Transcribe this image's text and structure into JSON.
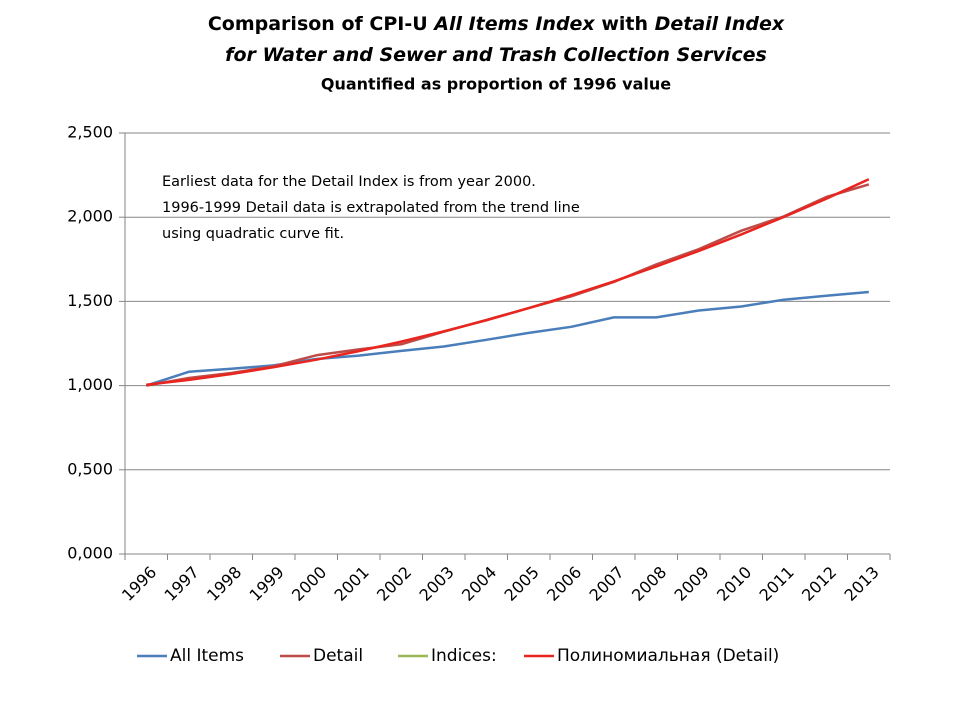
{
  "chart_data": {
    "type": "line",
    "title_lines": [
      [
        {
          "text": "Comparison of CPI-U ",
          "italic": false
        },
        {
          "text": "All Items Index",
          "italic": true
        },
        {
          "text": " with ",
          "italic": false
        },
        {
          "text": "Detail Index",
          "italic": true
        }
      ],
      [
        {
          "text": "for Water and Sewer and Trash Collection Services",
          "italic": true
        }
      ]
    ],
    "subtitle": "Quantified as proportion of 1996 value",
    "annotation": [
      "Earliest data for the Detail Index is from year 2000.",
      "1996-1999 Detail data is extrapolated from the trend line",
      "using quadratic curve fit."
    ],
    "categories": [
      "1996",
      "1997",
      "1998",
      "1999",
      "2000",
      "2001",
      "2002",
      "2003",
      "2004",
      "2005",
      "2006",
      "2007",
      "2008",
      "2009",
      "2010",
      "2011",
      "2012",
      "2013"
    ],
    "series": [
      {
        "name": "All Items",
        "color": "#4a7ebb",
        "values": [
          1.0,
          1.082,
          1.1,
          1.12,
          1.158,
          1.178,
          1.206,
          1.232,
          1.272,
          1.313,
          1.349,
          1.405,
          1.405,
          1.446,
          1.47,
          1.51,
          1.533,
          1.556
        ]
      },
      {
        "name": "Detail",
        "color": "#be4b48",
        "values": [
          1.0,
          1.045,
          1.075,
          1.115,
          1.18,
          1.215,
          1.245,
          1.32,
          1.39,
          1.46,
          1.53,
          1.615,
          1.72,
          1.81,
          1.92,
          2.005,
          2.12,
          2.195
        ]
      },
      {
        "name": "Indices:",
        "color": "#98b954",
        "values": [
          null,
          null,
          null,
          null,
          null,
          null,
          null,
          null,
          null,
          null,
          null,
          null,
          null,
          null,
          null,
          null,
          null,
          null
        ]
      },
      {
        "name": "Полиномиальная (Detail)",
        "color": "#e8251f",
        "values": [
          1.005,
          1.034,
          1.069,
          1.109,
          1.154,
          1.205,
          1.261,
          1.322,
          1.388,
          1.46,
          1.537,
          1.619,
          1.707,
          1.8,
          1.898,
          2.001,
          2.11,
          2.225
        ]
      }
    ],
    "ylim": [
      0,
      2.5
    ],
    "yticks": [
      {
        "value": 0,
        "label": "0,000"
      },
      {
        "value": 0.5,
        "label": "0,500"
      },
      {
        "value": 1,
        "label": "1,000"
      },
      {
        "value": 1.5,
        "label": "1,500"
      },
      {
        "value": 2,
        "label": "2,000"
      },
      {
        "value": 2.5,
        "label": "2,500"
      }
    ],
    "grid": true,
    "legend": "bottom"
  }
}
